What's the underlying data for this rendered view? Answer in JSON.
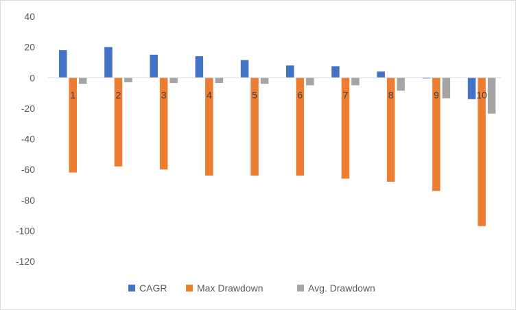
{
  "chart_data": {
    "type": "bar",
    "title": "",
    "xlabel": "",
    "ylabel": "",
    "categories": [
      "1",
      "2",
      "3",
      "4",
      "5",
      "6",
      "7",
      "8",
      "9",
      "10"
    ],
    "series": [
      {
        "name": "CAGR",
        "color": "#4472C4",
        "values": [
          18,
          20,
          15,
          14,
          11.5,
          8,
          7.5,
          4,
          -0.5,
          -14
        ]
      },
      {
        "name": "Max Drawdown",
        "color": "#ED7D31",
        "values": [
          -62,
          -58,
          -60,
          -64,
          -64,
          -64,
          -66,
          -68,
          -74,
          -97
        ]
      },
      {
        "name": "Avg. Drawdown",
        "color": "#A5A5A5",
        "values": [
          -4,
          -3,
          -3.5,
          -3.5,
          -4,
          -5,
          -5,
          -8.5,
          -13.5,
          -23.5
        ]
      }
    ],
    "ylim": [
      -120,
      40
    ],
    "yticks": [
      40,
      20,
      0,
      -20,
      -40,
      -60,
      -80,
      -100,
      -120
    ],
    "grid": false,
    "legend_position": "bottom"
  }
}
